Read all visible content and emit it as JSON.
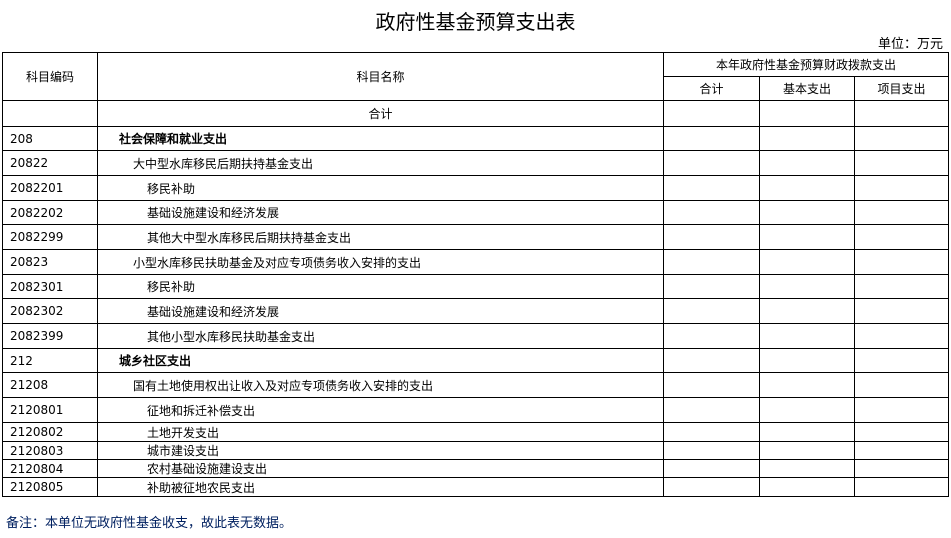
{
  "title": "政府性基金预算支出表",
  "unit": "单位：万元",
  "header": {
    "code": "科目编码",
    "name": "科目名称",
    "group": "本年政府性基金预算财政拨款支出",
    "total": "合计",
    "basic": "基本支出",
    "project": "项目支出"
  },
  "total_row_label": "合计",
  "rows": [
    {
      "code": "208",
      "name": "社会保障和就业支出",
      "level": 1
    },
    {
      "code": "20822",
      "name": "大中型水库移民后期扶持基金支出",
      "level": 2
    },
    {
      "code": "2082201",
      "name": "移民补助",
      "level": 3
    },
    {
      "code": "2082202",
      "name": "基础设施建设和经济发展",
      "level": 3
    },
    {
      "code": "2082299",
      "name": "其他大中型水库移民后期扶持基金支出",
      "level": 3
    },
    {
      "code": "20823",
      "name": "小型水库移民扶助基金及对应专项债务收入安排的支出",
      "level": 2
    },
    {
      "code": "2082301",
      "name": "移民补助",
      "level": 3
    },
    {
      "code": "2082302",
      "name": "基础设施建设和经济发展",
      "level": 3
    },
    {
      "code": "2082399",
      "name": "其他小型水库移民扶助基金支出",
      "level": 3
    },
    {
      "code": "212",
      "name": "城乡社区支出",
      "level": 1
    },
    {
      "code": "21208",
      "name": "国有土地使用权出让收入及对应专项债务收入安排的支出",
      "level": 2
    },
    {
      "code": "2120801",
      "name": "征地和拆迁补偿支出",
      "level": 3
    },
    {
      "code": "2120802",
      "name": "土地开发支出",
      "level": 3
    },
    {
      "code": "2120803",
      "name": "城市建设支出",
      "level": 3
    },
    {
      "code": "2120804",
      "name": "农村基础设施建设支出",
      "level": 3
    },
    {
      "code": "2120805",
      "name": "补助被征地农民支出",
      "level": 3
    }
  ],
  "note": "备注：本单位无政府性基金收支，故此表无数据。",
  "colors": {
    "note": "#002060"
  }
}
